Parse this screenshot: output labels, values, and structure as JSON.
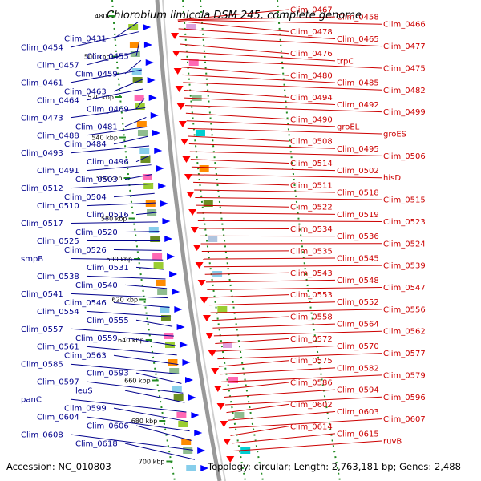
{
  "title": "Chlorobium limicola DSM 245, complete genome",
  "footer": {
    "accession": "Accession: NC_010803",
    "summary": "Topology: circular; Length: 2,763,181 bp; Genes: 2,488"
  },
  "ticks": [
    "480",
    "500 kbp",
    "520 kbp",
    "540 kbp",
    "560 kbp",
    "580 kbp",
    "600 kbp",
    "620 kbp",
    "640 kbp",
    "660 kbp",
    "680 kbp",
    "700 kbp"
  ],
  "left_labels": [
    "Clim_0431",
    "Clim_0454",
    "Clim_0455",
    "Clim_0457",
    "Clim_0459",
    "Clim_0461",
    "Clim_0463",
    "Clim_0464",
    "Clim_0469",
    "Clim_0473",
    "Clim_0481",
    "Clim_0488",
    "Clim_0484",
    "Clim_0493",
    "Clim_0496",
    "Clim_0491",
    "Clim_0503",
    "Clim_0512",
    "Clim_0504",
    "Clim_0510",
    "Clim_0516",
    "Clim_0517",
    "Clim_0520",
    "Clim_0525",
    "Clim_0526",
    "smpB",
    "Clim_0531",
    "Clim_0538",
    "Clim_0540",
    "Clim_0541",
    "Clim_0546",
    "Clim_0554",
    "Clim_0555",
    "Clim_0557",
    "Clim_0559",
    "Clim_0561",
    "Clim_0563",
    "Clim_0585",
    "Clim_0593",
    "Clim_0597",
    "leuS",
    "panC",
    "Clim_0599",
    "Clim_0604",
    "Clim_0606",
    "Clim_0608",
    "Clim_0618"
  ],
  "right_labels": [
    "Clim_0467",
    "Clim_0458",
    "Clim_0466",
    "Clim_0478",
    "Clim_0465",
    "Clim_0477",
    "Clim_0476",
    "trpC",
    "Clim_0475",
    "Clim_0480",
    "Clim_0485",
    "Clim_0482",
    "Clim_0494",
    "Clim_0492",
    "Clim_0499",
    "Clim_0490",
    "groEL",
    "groES",
    "Clim_0508",
    "Clim_0495",
    "Clim_0506",
    "Clim_0514",
    "Clim_0502",
    "hisD",
    "Clim_0511",
    "Clim_0518",
    "Clim_0515",
    "Clim_0522",
    "Clim_0519",
    "Clim_0523",
    "Clim_0534",
    "Clim_0536",
    "Clim_0524",
    "Clim_0535",
    "Clim_0545",
    "Clim_0539",
    "Clim_0543",
    "Clim_0548",
    "Clim_0547",
    "Clim_0553",
    "Clim_0552",
    "Clim_0556",
    "Clim_0558",
    "Clim_0564",
    "Clim_0562",
    "Clim_0572",
    "Clim_0570",
    "Clim_0577",
    "Clim_0575",
    "Clim_0582",
    "Clim_0579",
    "Clim_0586",
    "Clim_0594",
    "Clim_0596",
    "Clim_0602",
    "Clim_0603",
    "Clim_0607",
    "Clim_0614",
    "Clim_0615",
    "ruvB"
  ],
  "colors": {
    "left_label": "#00008b",
    "right_label": "#cc0000",
    "forward_gene": "#0000ff",
    "reverse_gene": "#ff0000",
    "backbone": "#999999",
    "tick_mark": "#228b22"
  }
}
